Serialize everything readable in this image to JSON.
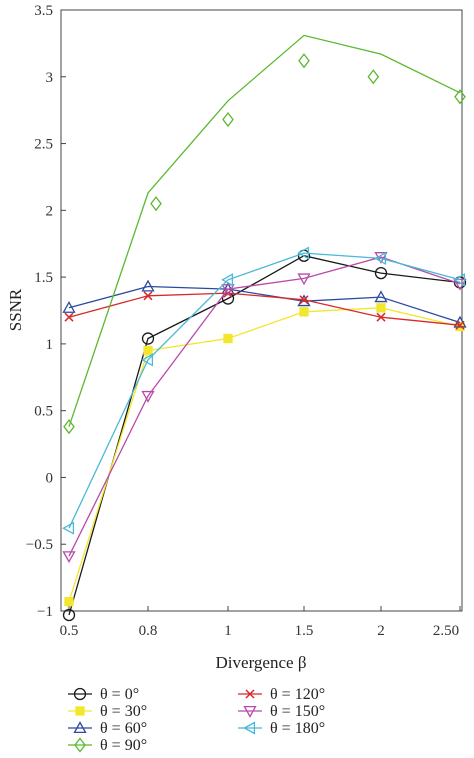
{
  "chart_data": {
    "type": "line",
    "xlabel": "Divergence β",
    "ylabel": "SSNR",
    "x": [
      0.5,
      0.8,
      1,
      1.5,
      2,
      2.5
    ],
    "x_tick_labels": [
      "0.5",
      "0.8",
      "1",
      "1.5",
      "2",
      "2.50"
    ],
    "y_ticks": [
      -1,
      -0.5,
      0,
      0.5,
      1,
      1.5,
      2,
      2.5,
      3,
      3.5
    ],
    "y_tick_labels": [
      "−1",
      "−0.5",
      "0",
      "0.5",
      "1",
      "1.5",
      "2",
      "2.5",
      "3",
      "3.5"
    ],
    "ylim": [
      -1,
      3.5
    ],
    "grid": false,
    "legend_position": "bottom",
    "series": [
      {
        "name": "θ = 0°",
        "color": "#1a1a1a",
        "marker": "circle",
        "line": true,
        "points": [
          [
            0.5,
            -1.03
          ],
          [
            0.8,
            1.04
          ],
          [
            1,
            1.34
          ],
          [
            1.5,
            1.66
          ],
          [
            2,
            1.53
          ],
          [
            2.5,
            1.46
          ]
        ]
      },
      {
        "name": "θ = 30°",
        "color": "#f2e72a",
        "marker": "square",
        "line": true,
        "points": [
          [
            0.5,
            -0.93
          ],
          [
            0.8,
            0.95
          ],
          [
            1,
            1.04
          ],
          [
            1.5,
            1.24
          ],
          [
            2,
            1.27
          ],
          [
            2.5,
            1.13
          ]
        ]
      },
      {
        "name": "θ = 60°",
        "color": "#2a4aa0",
        "marker": "triangle-up",
        "line": true,
        "points": [
          [
            0.5,
            1.27
          ],
          [
            0.8,
            1.43
          ],
          [
            1,
            1.41
          ],
          [
            1.5,
            1.32
          ],
          [
            2,
            1.35
          ],
          [
            2.5,
            1.16
          ]
        ]
      },
      {
        "name": "θ = 90°",
        "color": "#5cb82e",
        "marker": "diamond",
        "line": false,
        "points": [
          [
            0.5,
            0.38
          ],
          [
            0.82,
            2.05
          ],
          [
            1,
            2.68
          ],
          [
            1.5,
            3.12
          ],
          [
            1.95,
            3.0
          ],
          [
            2.5,
            2.85
          ]
        ]
      },
      {
        "name": "θ = 120°",
        "color": "#d82a2a",
        "marker": "cross",
        "line": true,
        "points": [
          [
            0.5,
            1.2
          ],
          [
            0.8,
            1.36
          ],
          [
            1,
            1.38
          ],
          [
            1.5,
            1.33
          ],
          [
            2,
            1.2
          ],
          [
            2.5,
            1.14
          ]
        ]
      },
      {
        "name": "θ = 150°",
        "color": "#b84aa8",
        "marker": "triangle-down",
        "line": true,
        "points": [
          [
            0.5,
            -0.59
          ],
          [
            0.8,
            0.61
          ],
          [
            1,
            1.41
          ],
          [
            1.5,
            1.49
          ],
          [
            2,
            1.65
          ],
          [
            2.5,
            1.45
          ]
        ]
      },
      {
        "name": "θ = 180°",
        "color": "#4ab8d8",
        "marker": "triangle-left",
        "line": true,
        "points": [
          [
            0.5,
            -0.38
          ],
          [
            0.8,
            0.88
          ],
          [
            1,
            1.48
          ],
          [
            1.5,
            1.68
          ],
          [
            2,
            1.64
          ],
          [
            2.5,
            1.48
          ]
        ]
      },
      {
        "name": "",
        "color": "#5cb82e",
        "marker": "none",
        "line": true,
        "points": [
          [
            0.5,
            0.38
          ],
          [
            0.8,
            2.13
          ],
          [
            1,
            2.82
          ],
          [
            1.5,
            3.31
          ],
          [
            2,
            3.17
          ],
          [
            2.5,
            2.88
          ]
        ]
      }
    ]
  }
}
